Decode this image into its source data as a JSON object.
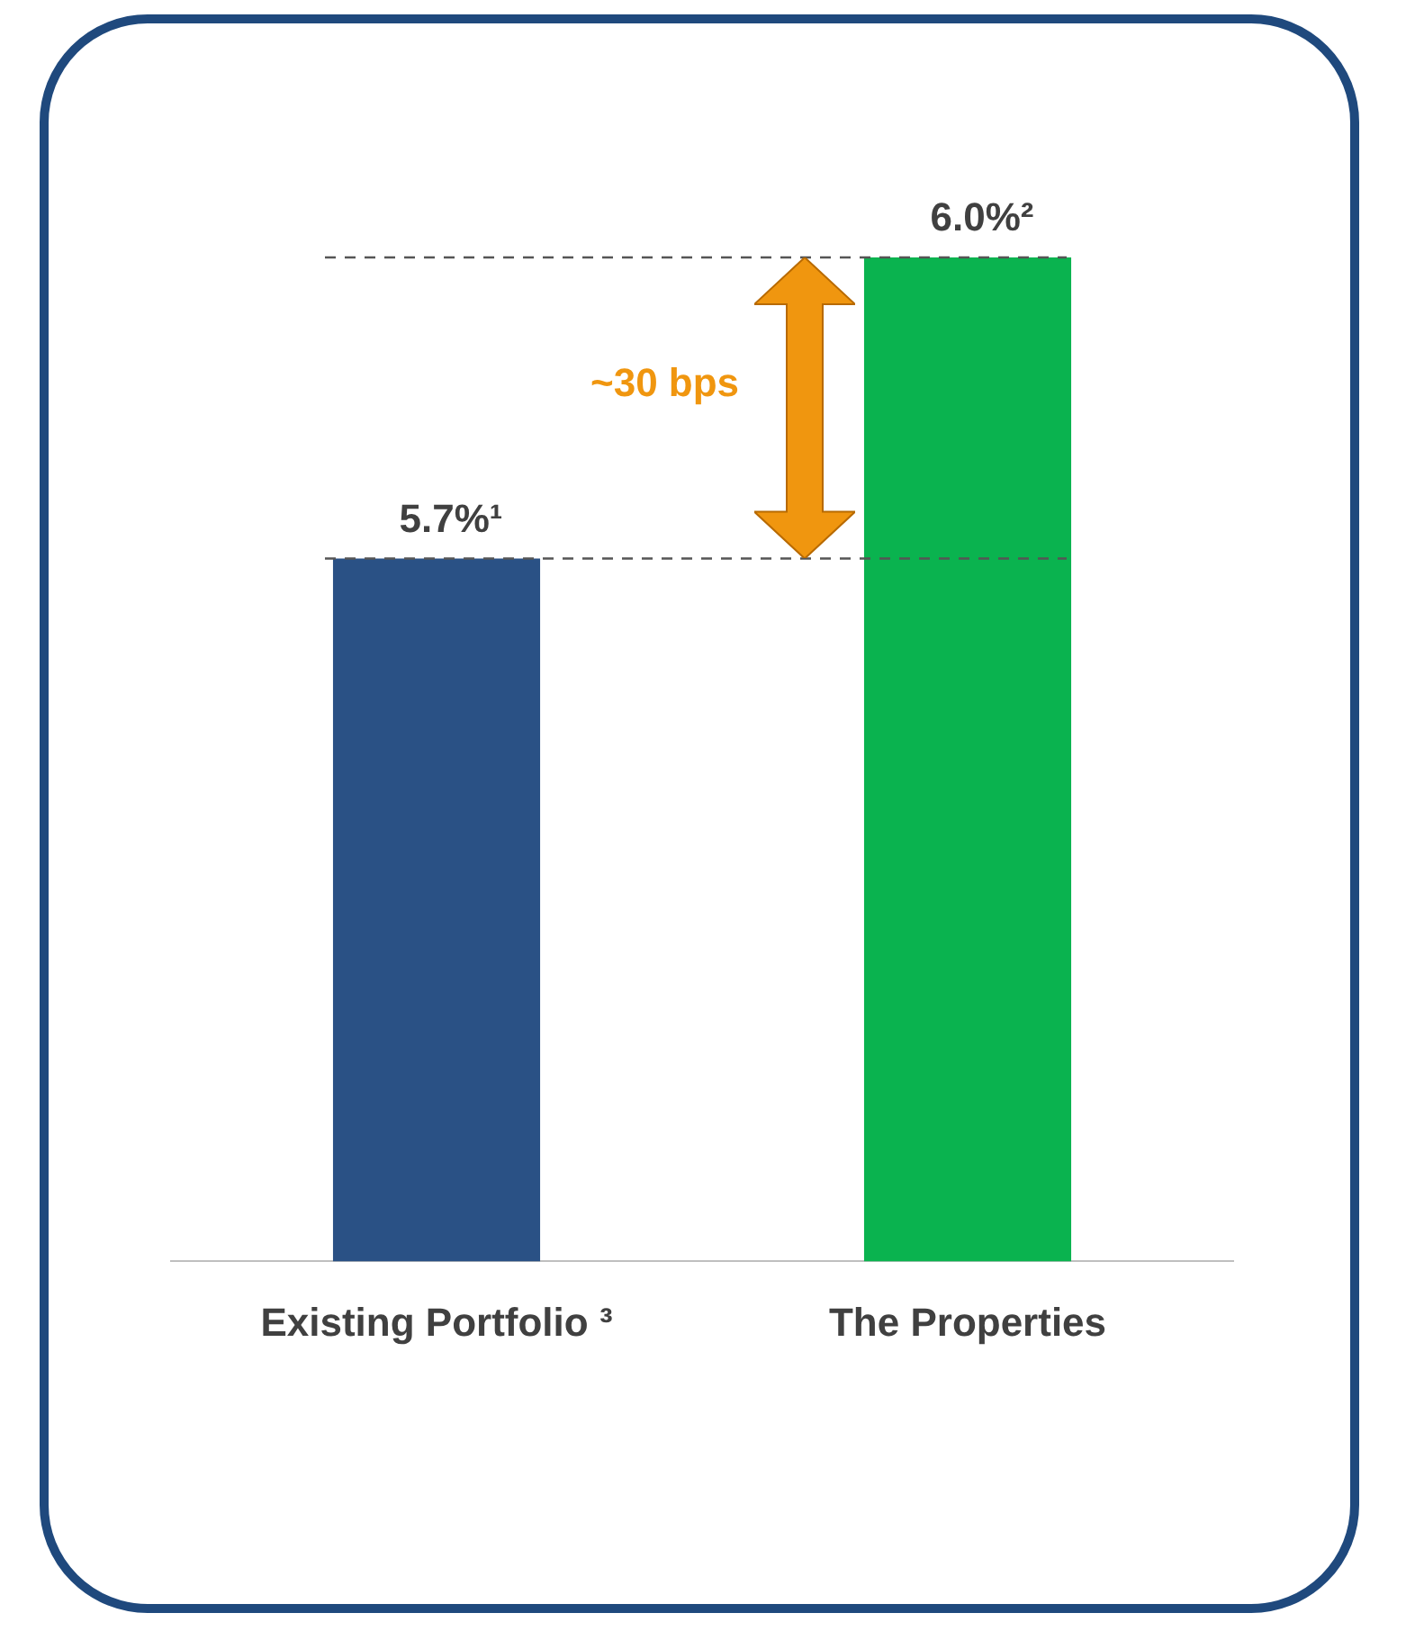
{
  "chart_data": {
    "type": "bar",
    "categories": [
      "Existing Portfolio ³",
      "The Properties"
    ],
    "values": [
      5.7,
      6.0
    ],
    "colors": [
      "#2a5185",
      "#0ab34f"
    ],
    "value_labels": [
      "5.7%¹",
      "6.0%²"
    ],
    "ylim": [
      5.0,
      6.0
    ],
    "tick_labels": "x",
    "grid": false,
    "legend": false,
    "ref_lines": [
      {
        "axis": "y",
        "value": 5.7,
        "color": "#555555",
        "line_style": "dashed"
      },
      {
        "axis": "y",
        "value": 6.0,
        "color": "#555555",
        "line_style": "dashed"
      }
    ],
    "annotations": [
      "~30 bps"
    ]
  }
}
